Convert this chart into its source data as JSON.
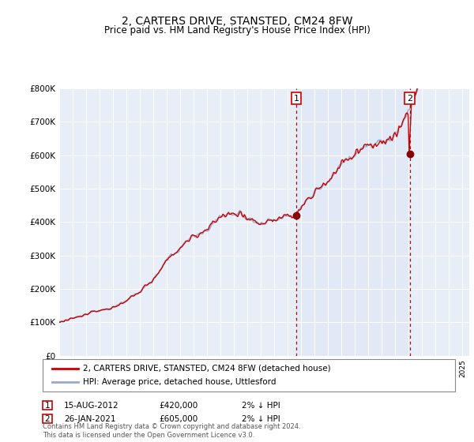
{
  "title": "2, CARTERS DRIVE, STANSTED, CM24 8FW",
  "subtitle": "Price paid vs. HM Land Registry's House Price Index (HPI)",
  "xlim_start": 1995.0,
  "xlim_end": 2025.5,
  "ylim": [
    0,
    800000
  ],
  "yticks": [
    0,
    100000,
    200000,
    300000,
    400000,
    500000,
    600000,
    700000,
    800000
  ],
  "ytick_labels": [
    "£0",
    "£100K",
    "£200K",
    "£300K",
    "£400K",
    "£500K",
    "£600K",
    "£700K",
    "£800K"
  ],
  "line_color_property": "#cc0000",
  "line_color_hpi": "#99aacc",
  "highlight_color": "#dde8f5",
  "transaction1_date": 2012.62,
  "transaction1_price": 420000,
  "transaction1_label": "1",
  "transaction1_text": "15-AUG-2012",
  "transaction1_amount": "£420,000",
  "transaction1_note": "2% ↓ HPI",
  "transaction2_date": 2021.07,
  "transaction2_price": 605000,
  "transaction2_label": "2",
  "transaction2_text": "26-JAN-2021",
  "transaction2_amount": "£605,000",
  "transaction2_note": "2% ↓ HPI",
  "legend_property": "2, CARTERS DRIVE, STANSTED, CM24 8FW (detached house)",
  "legend_hpi": "HPI: Average price, detached house, Uttlesford",
  "footer": "Contains HM Land Registry data © Crown copyright and database right 2024.\nThis data is licensed under the Open Government Licence v3.0.",
  "background_color": "#e8eef8",
  "highlight_bg": "#dde8f5",
  "plot_background": "#ffffff",
  "title_fontsize": 10,
  "subtitle_fontsize": 8.5
}
